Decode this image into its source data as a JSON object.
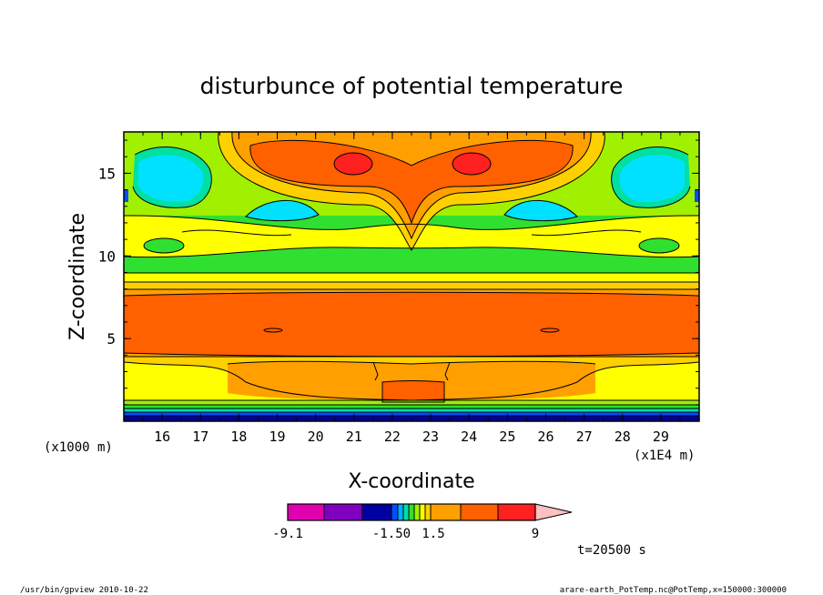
{
  "chart_data": {
    "type": "heatmap",
    "title": "disturbunce of potential temperature",
    "xlabel": "X-coordinate",
    "ylabel": "Z-coordinate",
    "x_unit": "(x1E4 m)",
    "y_unit": "(x1000 m)",
    "xlim": [
      15.0,
      30.0
    ],
    "ylim": [
      0.0,
      17.5
    ],
    "x_ticks": [
      "16",
      "17",
      "18",
      "19",
      "20",
      "21",
      "22",
      "23",
      "24",
      "25",
      "26",
      "27",
      "28",
      "29"
    ],
    "y_ticks": [
      "5",
      "10",
      "15"
    ],
    "colorbar": {
      "labels": [
        "-9.1",
        "-1.50",
        "1.5",
        "9"
      ],
      "colors": [
        "#e000b0",
        "#8000c0",
        "#0000a0",
        "#0050ff",
        "#00b0ff",
        "#00e0a0",
        "#30e030",
        "#a0f000",
        "#ffff00",
        "#ffd000",
        "#ffa000",
        "#ff6000",
        "#ff2020",
        "#ff7878",
        "#ffc0c0"
      ]
    },
    "time_label": "t=20500 s",
    "levels_regions": [
      {
        "z_from": 0.0,
        "z_to": 0.4,
        "value": "< -1.5"
      },
      {
        "z_from": 0.8,
        "z_to": 3.8,
        "value": "0.5 - 1.5"
      },
      {
        "z_from": 3.8,
        "z_to": 8.3,
        "value": "1.5 - 3"
      },
      {
        "z_from": 8.3,
        "z_to": 11.5,
        "value": "0 - 0.5"
      },
      {
        "z_from": 12.5,
        "z_to": 17.0,
        "value": "1.5 - 3"
      }
    ]
  },
  "footer": {
    "left": "/usr/bin/gpview   2010-10-22",
    "right": "arare-earth_PotTemp.nc@PotTemp,x=150000:300000"
  }
}
